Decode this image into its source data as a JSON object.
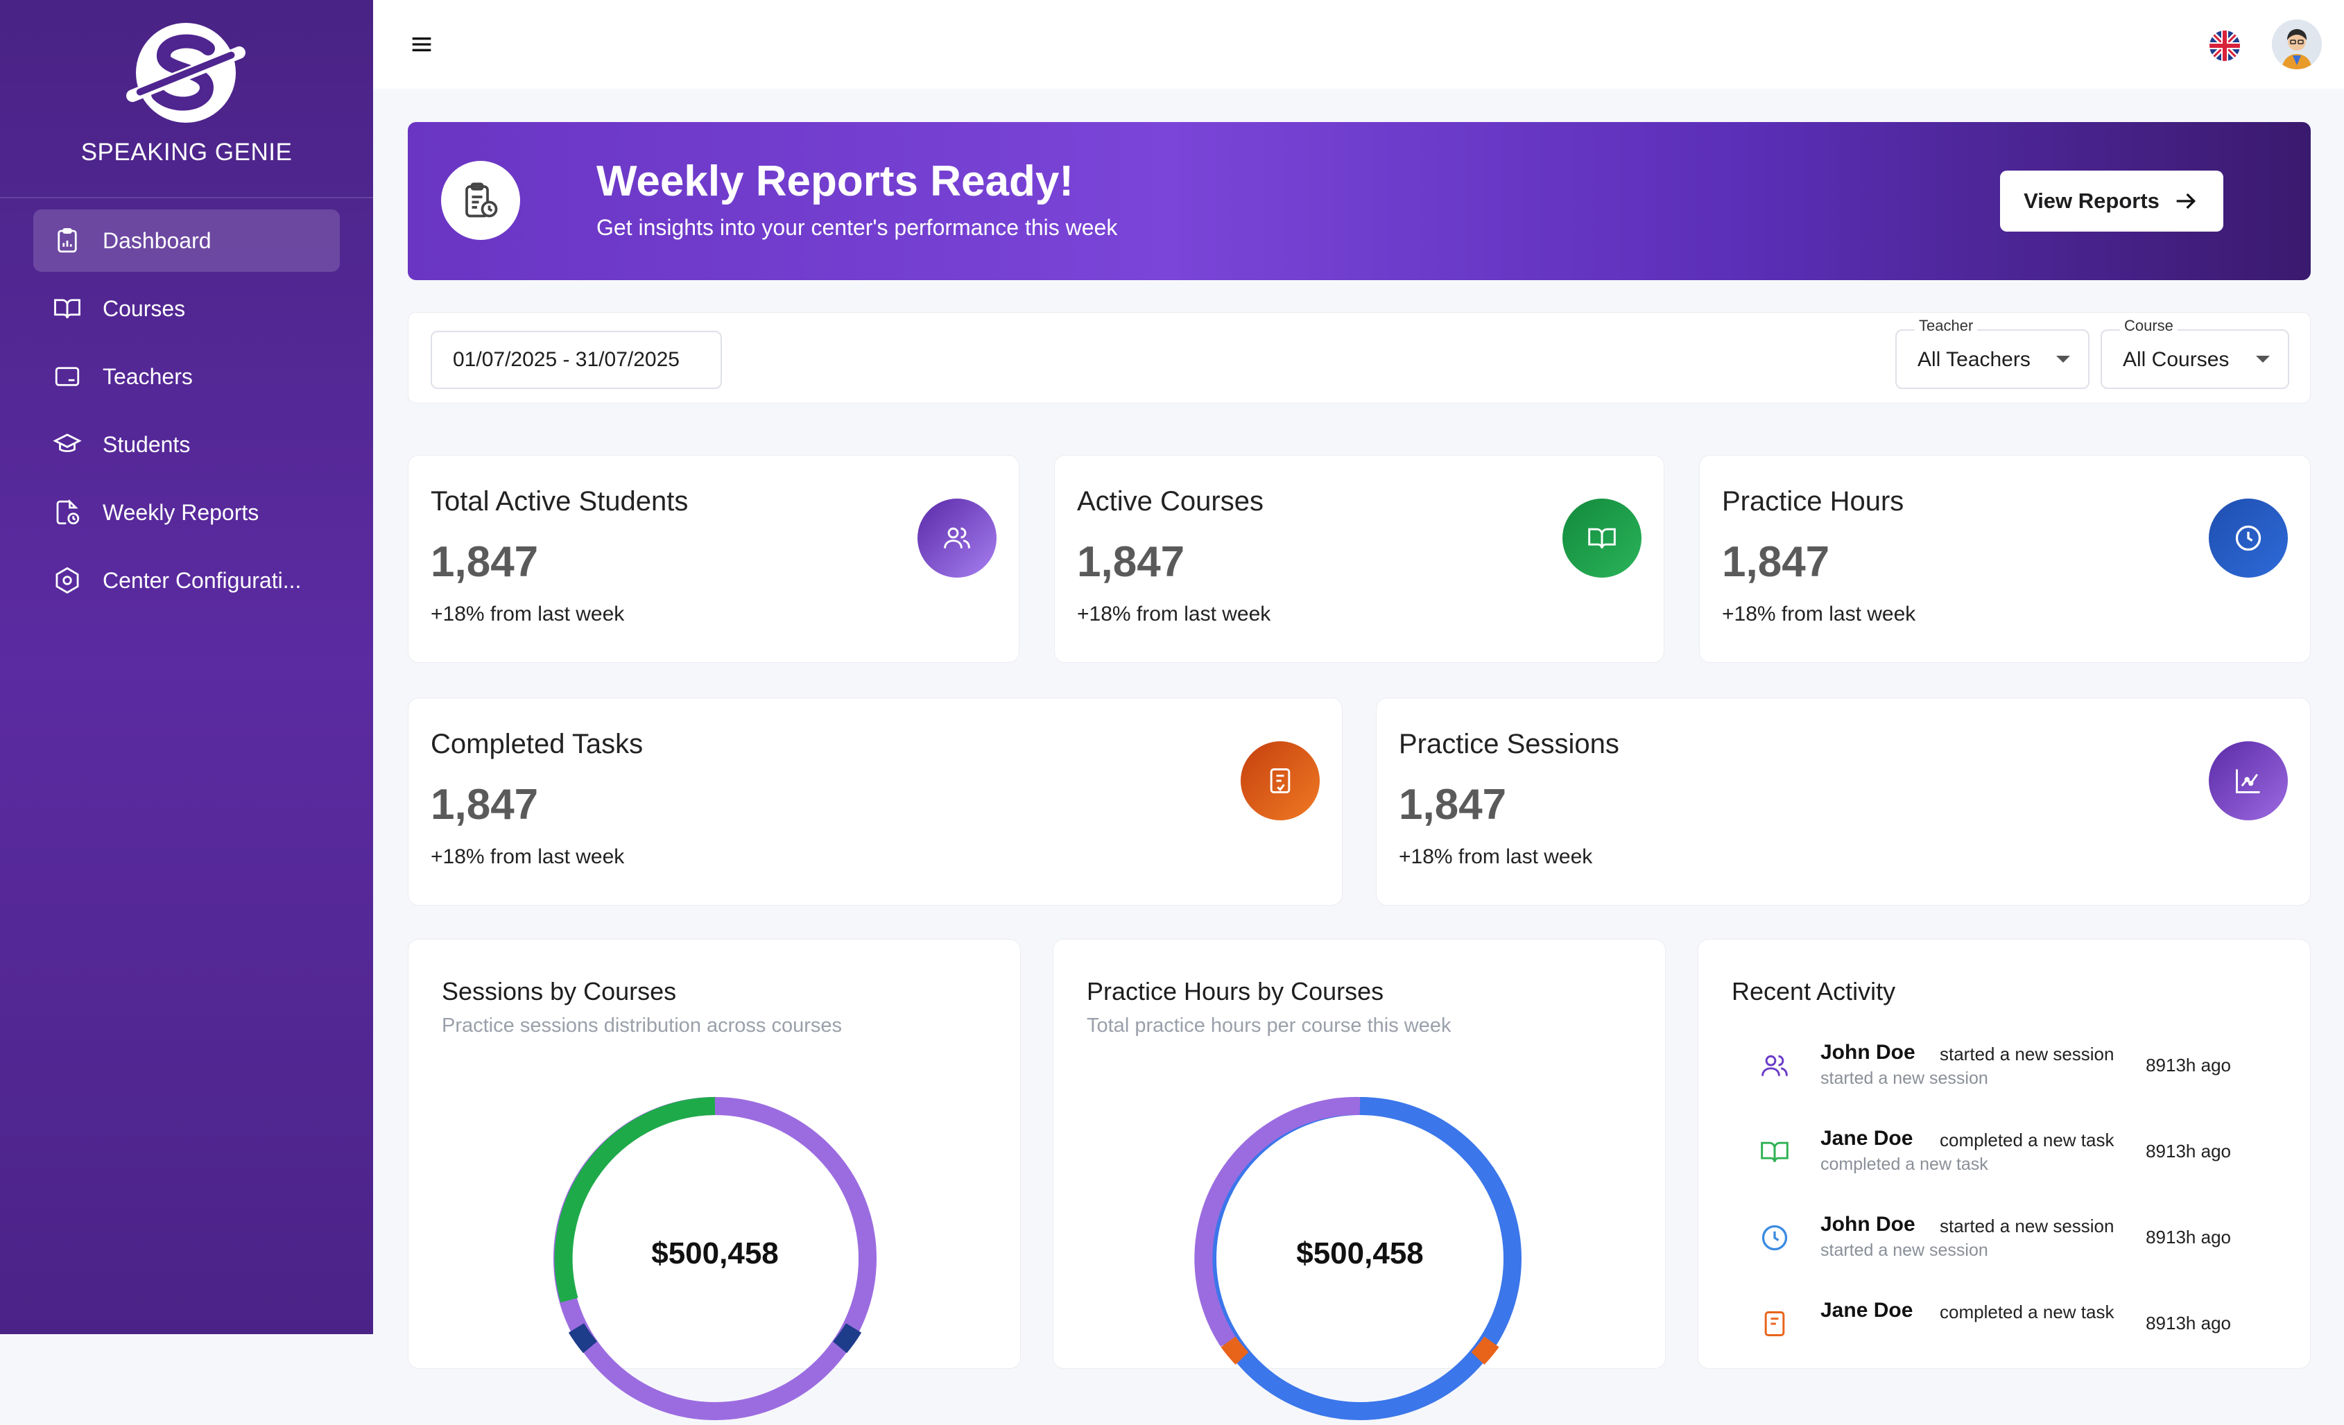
{
  "brand": {
    "name": "SPEAKING GENIE"
  },
  "sidebar": {
    "items": [
      {
        "label": "Dashboard",
        "icon": "clipboard-icon",
        "active": true
      },
      {
        "label": "Courses",
        "icon": "book-icon"
      },
      {
        "label": "Teachers",
        "icon": "monitor-icon"
      },
      {
        "label": "Students",
        "icon": "graduation-cap-icon"
      },
      {
        "label": "Weekly Reports",
        "icon": "report-clock-icon"
      },
      {
        "label": "Center Configurati...",
        "icon": "hexagon-gear-icon"
      }
    ]
  },
  "banner": {
    "title": "Weekly Reports Ready!",
    "subtitle": "Get insights into your center's performance this week",
    "button": "View Reports"
  },
  "filters": {
    "date_range": "01/07/2025 - 31/07/2025",
    "teacher_label": "Teacher",
    "teacher_value": "All Teachers",
    "course_label": "Course",
    "course_value": "All Courses"
  },
  "stats": [
    {
      "title": "Total Active Students",
      "value": "1,847",
      "delta": "+18% from last week",
      "icon": "users-icon"
    },
    {
      "title": "Active Courses",
      "value": "1,847",
      "delta": "+18% from last week",
      "icon": "book-icon"
    },
    {
      "title": "Practice Hours",
      "value": "1,847",
      "delta": "+18% from last week",
      "icon": "clock-icon"
    },
    {
      "title": "Completed Tasks",
      "value": "1,847",
      "delta": "+18% from last week",
      "icon": "task-check-icon"
    },
    {
      "title": "Practice Sessions",
      "value": "1,847",
      "delta": "+18% from last week",
      "icon": "chart-icon"
    }
  ],
  "panels": {
    "sessions": {
      "title": "Sessions by Courses",
      "subtitle": "Practice sessions distribution across courses",
      "total": "$500,458"
    },
    "hours": {
      "title": "Practice Hours by Courses",
      "subtitle": "Total practice hours per course this week",
      "total": "$500,458"
    },
    "activity": {
      "title": "Recent Activity",
      "items": [
        {
          "name": "John Doe",
          "verb": "started a new session",
          "sub": "started a new session",
          "time": "8913h ago",
          "icon": "users-icon"
        },
        {
          "name": "Jane Doe",
          "verb": "completed a new task",
          "sub": "completed a new task",
          "time": "8913h ago",
          "icon": "book-icon"
        },
        {
          "name": "John Doe",
          "verb": "started a new session",
          "sub": "started a new session",
          "time": "8913h ago",
          "icon": "clock-icon"
        },
        {
          "name": "Jane Doe",
          "verb": "completed a new task",
          "sub": "",
          "time": "8913h ago",
          "icon": "task-icon"
        }
      ]
    }
  },
  "colors": {
    "sidebar": "#4f2590",
    "green": "#1faa4a",
    "purple": "#9b6ce0",
    "blue": "#3b76ea",
    "orange": "#e8641b"
  }
}
